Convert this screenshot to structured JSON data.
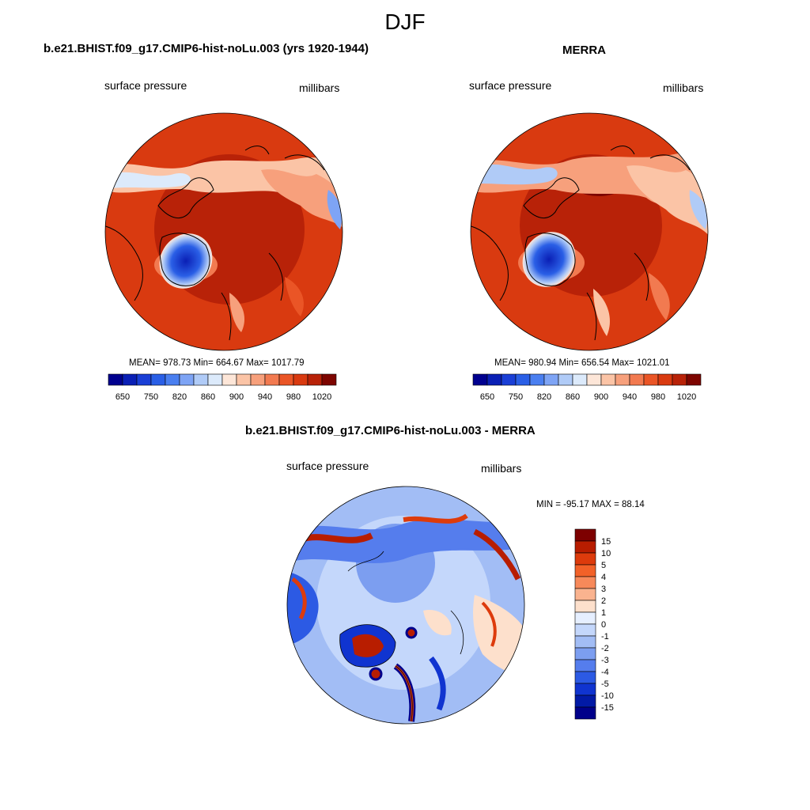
{
  "page": {
    "title": "DJF"
  },
  "panels": {
    "model": {
      "title": "b.e21.BHIST.f09_g17.CMIP6-hist-noLu.003 (yrs 1920-1944)",
      "variable": "surface pressure",
      "units": "millibars",
      "stats": "MEAN= 978.73  Min= 664.67  Max= 1017.79"
    },
    "obs": {
      "title": "MERRA",
      "variable": "surface pressure",
      "units": "millibars",
      "stats": "MEAN= 980.94  Min= 656.54  Max= 1021.01"
    },
    "diff": {
      "title": "b.e21.BHIST.f09_g17.CMIP6-hist-noLu.003 - MERRA",
      "variable": "surface pressure",
      "units": "millibars",
      "stats": "MIN = -95.17 MAX =  88.14"
    }
  },
  "colorbars": {
    "absolute": {
      "colors": [
        "#00008f",
        "#0a1fb5",
        "#1a3fd6",
        "#2a5fe6",
        "#4a7ff0",
        "#7ea4f5",
        "#b0cbf7",
        "#dceafb",
        "#fde6d8",
        "#fbc4a6",
        "#f7a07c",
        "#f27a50",
        "#ea5526",
        "#d93a10",
        "#b82208",
        "#7d0500"
      ],
      "labels": [
        "650",
        "750",
        "820",
        "860",
        "900",
        "940",
        "980",
        "1020"
      ]
    },
    "difference": {
      "colors": [
        "#7d0000",
        "#b81d00",
        "#dd3b0c",
        "#f26128",
        "#f7895a",
        "#fab38f",
        "#fde0cc",
        "#e6efff",
        "#c4d7fb",
        "#a2bdf5",
        "#7c9ef0",
        "#557ded",
        "#2c5ae4",
        "#1034d0",
        "#021aa6",
        "#00008a"
      ],
      "labels": [
        "15",
        "10",
        "5",
        "4",
        "3",
        "2",
        "1",
        "0",
        "-1",
        "-2",
        "-3",
        "-4",
        "-5",
        "-10",
        "-15"
      ]
    }
  }
}
